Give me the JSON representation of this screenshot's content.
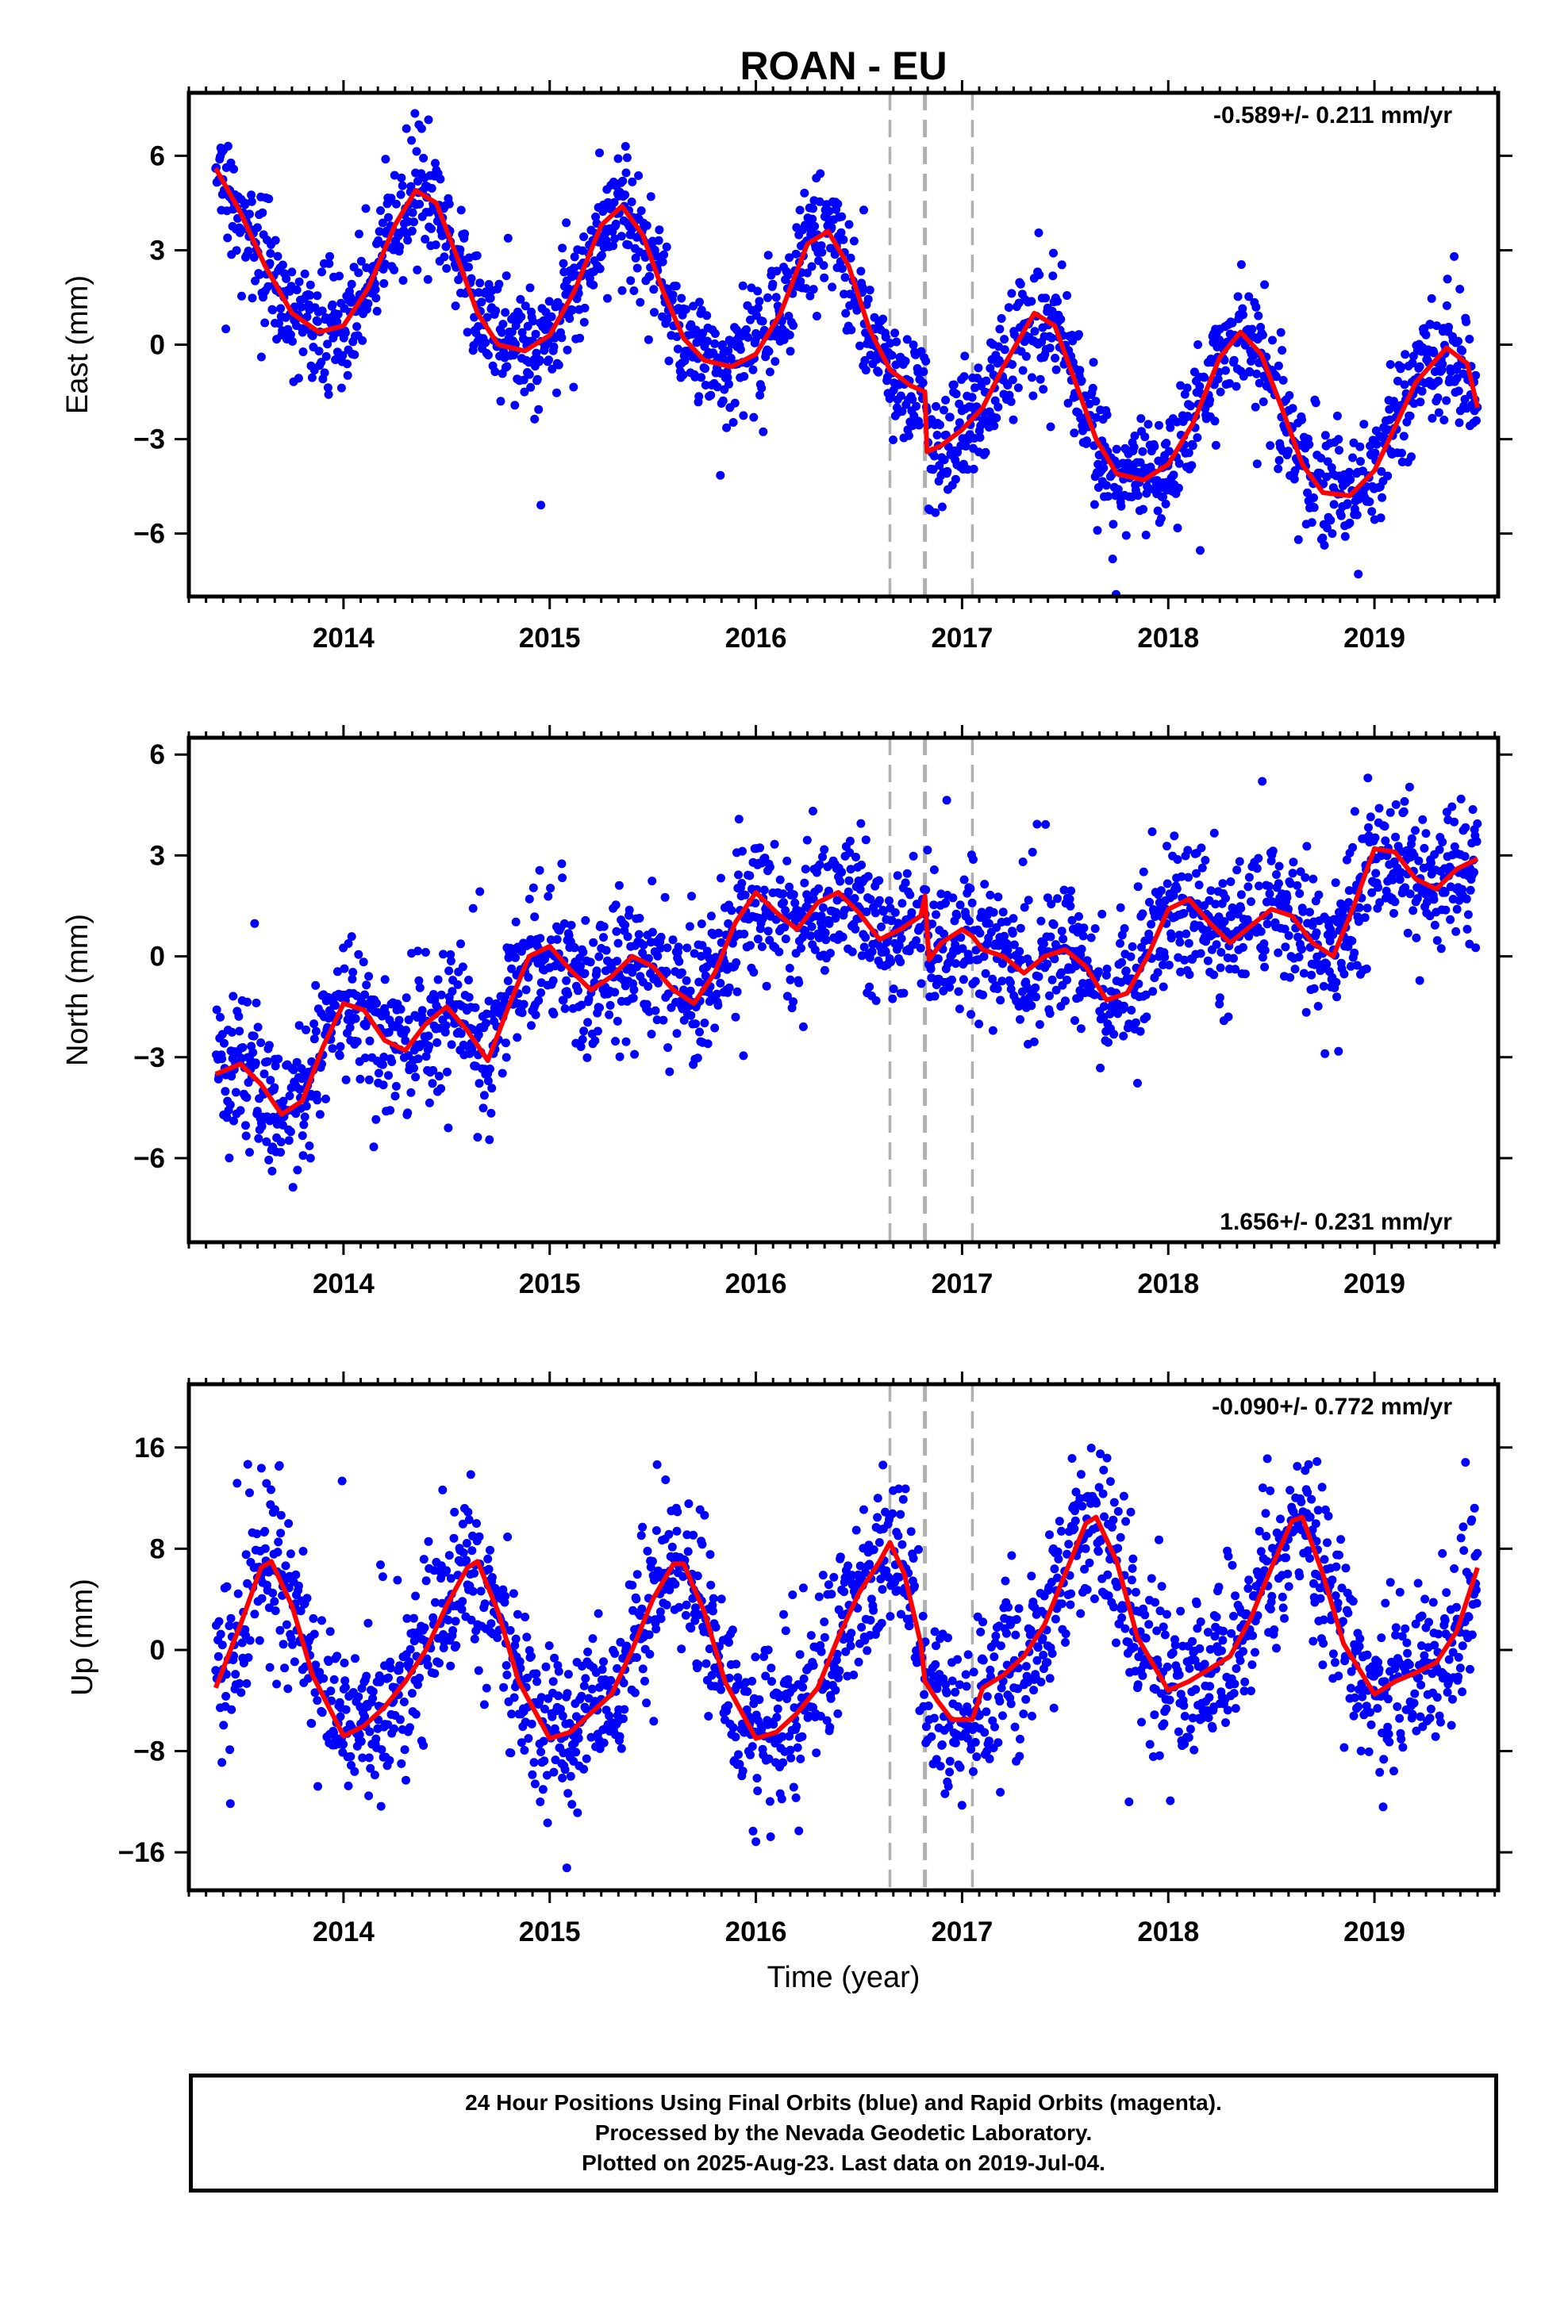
{
  "title": "ROAN - EU",
  "xlabel": "Time (year)",
  "footer": {
    "line1": "24 Hour Positions Using Final Orbits (blue) and Rapid Orbits (magenta).",
    "line2": "Processed by the Nevada Geodetic Laboratory.",
    "line3": "Plotted on 2025-Aug-23. Last data on 2019-Jul-04."
  },
  "colors": {
    "points": "#0000ff",
    "model": "#ff0000",
    "events": "#b0b0b0",
    "axes": "#000000"
  },
  "chart_data": [
    {
      "type": "scatter",
      "panel": "east",
      "ylabel": "East (mm)",
      "rate": "-0.589+/- 0.211 mm/yr",
      "rate_position": "top-right",
      "xlim": [
        2013.25,
        2019.6
      ],
      "ylim": [
        -8,
        8
      ],
      "xticks": [
        2014,
        2015,
        2016,
        2017,
        2018,
        2019
      ],
      "yticks": [
        6,
        3,
        0,
        -3,
        -6
      ],
      "ytick_labels": [
        "6",
        "3",
        "0",
        "−3",
        "−6"
      ],
      "event_lines": [
        2016.65,
        2016.82,
        2017.05
      ],
      "model": {
        "x": [
          2013.38,
          2013.5,
          2013.62,
          2013.75,
          2013.88,
          2014.0,
          2014.12,
          2014.25,
          2014.35,
          2014.45,
          2014.55,
          2014.65,
          2014.75,
          2014.88,
          2015.0,
          2015.12,
          2015.25,
          2015.35,
          2015.45,
          2015.55,
          2015.65,
          2015.75,
          2015.88,
          2016.0,
          2016.12,
          2016.25,
          2016.35,
          2016.45,
          2016.55,
          2016.65,
          2016.75,
          2016.82,
          2016.83,
          2016.9,
          2017.0,
          2017.1,
          2017.2,
          2017.35,
          2017.45,
          2017.55,
          2017.65,
          2017.75,
          2017.88,
          2018.0,
          2018.12,
          2018.25,
          2018.35,
          2018.45,
          2018.55,
          2018.65,
          2018.75,
          2018.88,
          2019.0,
          2019.1,
          2019.2,
          2019.35,
          2019.45,
          2019.5
        ],
        "y": [
          5.6,
          4.2,
          2.5,
          1.0,
          0.4,
          0.6,
          1.8,
          3.8,
          4.9,
          4.5,
          2.8,
          1.0,
          0.0,
          -0.2,
          0.3,
          1.7,
          3.8,
          4.4,
          3.5,
          1.7,
          0.2,
          -0.5,
          -0.7,
          -0.3,
          1.0,
          3.2,
          3.6,
          2.5,
          0.5,
          -0.8,
          -1.3,
          -1.5,
          -3.4,
          -3.2,
          -2.7,
          -2.0,
          -0.7,
          1.0,
          0.6,
          -1.2,
          -3.0,
          -4.1,
          -4.3,
          -3.8,
          -2.5,
          -0.4,
          0.4,
          -0.3,
          -2.0,
          -3.8,
          -4.7,
          -4.8,
          -4.0,
          -2.6,
          -1.2,
          -0.1,
          -0.6,
          -2.0
        ]
      },
      "point_scatter_mm": 0.9,
      "point_spacing_days": 1
    },
    {
      "type": "scatter",
      "panel": "north",
      "ylabel": "North (mm)",
      "rate": "1.656+/- 0.231 mm/yr",
      "rate_position": "bottom-right",
      "xlim": [
        2013.25,
        2019.6
      ],
      "ylim": [
        -8.5,
        6.5
      ],
      "xticks": [
        2014,
        2015,
        2016,
        2017,
        2018,
        2019
      ],
      "yticks": [
        6,
        3,
        0,
        -3,
        -6
      ],
      "ytick_labels": [
        "6",
        "3",
        "0",
        "−3",
        "−6"
      ],
      "event_lines": [
        2016.65,
        2016.82,
        2017.05
      ],
      "model": {
        "x": [
          2013.38,
          2013.5,
          2013.6,
          2013.7,
          2013.8,
          2013.9,
          2014.0,
          2014.1,
          2014.2,
          2014.3,
          2014.4,
          2014.5,
          2014.6,
          2014.7,
          2014.8,
          2014.9,
          2015.0,
          2015.1,
          2015.2,
          2015.3,
          2015.4,
          2015.5,
          2015.6,
          2015.7,
          2015.8,
          2015.9,
          2016.0,
          2016.1,
          2016.2,
          2016.3,
          2016.4,
          2016.5,
          2016.6,
          2016.7,
          2016.8,
          2016.82,
          2016.84,
          2016.9,
          2017.0,
          2017.05,
          2017.1,
          2017.2,
          2017.3,
          2017.4,
          2017.5,
          2017.6,
          2017.7,
          2017.8,
          2017.9,
          2018.0,
          2018.1,
          2018.2,
          2018.3,
          2018.4,
          2018.5,
          2018.6,
          2018.7,
          2018.8,
          2018.9,
          2019.0,
          2019.1,
          2019.2,
          2019.3,
          2019.4,
          2019.5
        ],
        "y": [
          -3.5,
          -3.2,
          -3.8,
          -4.7,
          -4.3,
          -2.7,
          -1.4,
          -1.6,
          -2.5,
          -2.8,
          -2.0,
          -1.5,
          -2.2,
          -3.1,
          -1.5,
          0.0,
          0.3,
          -0.4,
          -1.0,
          -0.6,
          0.0,
          -0.3,
          -1.0,
          -1.4,
          -0.5,
          1.0,
          1.9,
          1.3,
          0.8,
          1.6,
          1.9,
          1.3,
          0.5,
          0.8,
          1.2,
          1.8,
          -0.1,
          0.4,
          0.8,
          0.6,
          0.2,
          0.0,
          -0.5,
          0.0,
          0.2,
          -0.3,
          -1.3,
          -1.1,
          0.0,
          1.4,
          1.7,
          1.0,
          0.4,
          0.9,
          1.4,
          1.2,
          0.4,
          0.0,
          1.5,
          3.2,
          3.1,
          2.3,
          2.0,
          2.6,
          2.9
        ]
      },
      "point_scatter_mm": 1.0,
      "point_spacing_days": 1
    },
    {
      "type": "scatter",
      "panel": "up",
      "ylabel": "Up (mm)",
      "rate": "-0.090+/- 0.772 mm/yr",
      "rate_position": "top-right",
      "xlim": [
        2013.25,
        2019.6
      ],
      "ylim": [
        -19,
        21
      ],
      "xticks": [
        2014,
        2015,
        2016,
        2017,
        2018,
        2019
      ],
      "yticks": [
        16,
        8,
        0,
        -8,
        -16
      ],
      "ytick_labels": [
        "16",
        "8",
        "0",
        "−8",
        "−16"
      ],
      "event_lines": [
        2016.65,
        2016.82,
        2017.05
      ],
      "model": {
        "x": [
          2013.38,
          2013.5,
          2013.6,
          2013.65,
          2013.75,
          2013.85,
          2014.0,
          2014.1,
          2014.2,
          2014.3,
          2014.4,
          2014.5,
          2014.6,
          2014.65,
          2014.75,
          2014.85,
          2015.0,
          2015.1,
          2015.2,
          2015.3,
          2015.4,
          2015.5,
          2015.6,
          2015.65,
          2015.75,
          2015.85,
          2016.0,
          2016.1,
          2016.2,
          2016.3,
          2016.4,
          2016.5,
          2016.6,
          2016.65,
          2016.72,
          2016.8,
          2016.82,
          2016.88,
          2016.95,
          2017.05,
          2017.1,
          2017.2,
          2017.3,
          2017.4,
          2017.5,
          2017.6,
          2017.65,
          2017.75,
          2017.85,
          2018.0,
          2018.1,
          2018.2,
          2018.3,
          2018.4,
          2018.5,
          2018.6,
          2018.65,
          2018.75,
          2018.85,
          2019.0,
          2019.1,
          2019.2,
          2019.3,
          2019.4,
          2019.5
        ],
        "y": [
          -3.0,
          2.0,
          6.5,
          7.0,
          3.5,
          -2.0,
          -6.8,
          -6.0,
          -4.5,
          -2.5,
          0.0,
          3.5,
          6.5,
          7.0,
          3.0,
          -2.5,
          -7.0,
          -6.5,
          -5.0,
          -3.5,
          0.0,
          4.0,
          6.8,
          6.8,
          3.0,
          -2.5,
          -7.0,
          -6.5,
          -5.0,
          -3.0,
          1.0,
          4.5,
          7.0,
          8.5,
          6.0,
          0.5,
          -2.5,
          -4.0,
          -5.5,
          -5.5,
          -3.0,
          -2.0,
          -0.5,
          2.0,
          6.0,
          10.0,
          10.5,
          7.0,
          1.0,
          -3.2,
          -2.5,
          -1.5,
          -0.5,
          2.5,
          6.5,
          10.2,
          10.5,
          6.0,
          0.5,
          -3.5,
          -2.5,
          -1.8,
          -1.0,
          1.5,
          6.5
        ]
      },
      "point_scatter_mm": 3.2,
      "point_spacing_days": 1
    }
  ]
}
